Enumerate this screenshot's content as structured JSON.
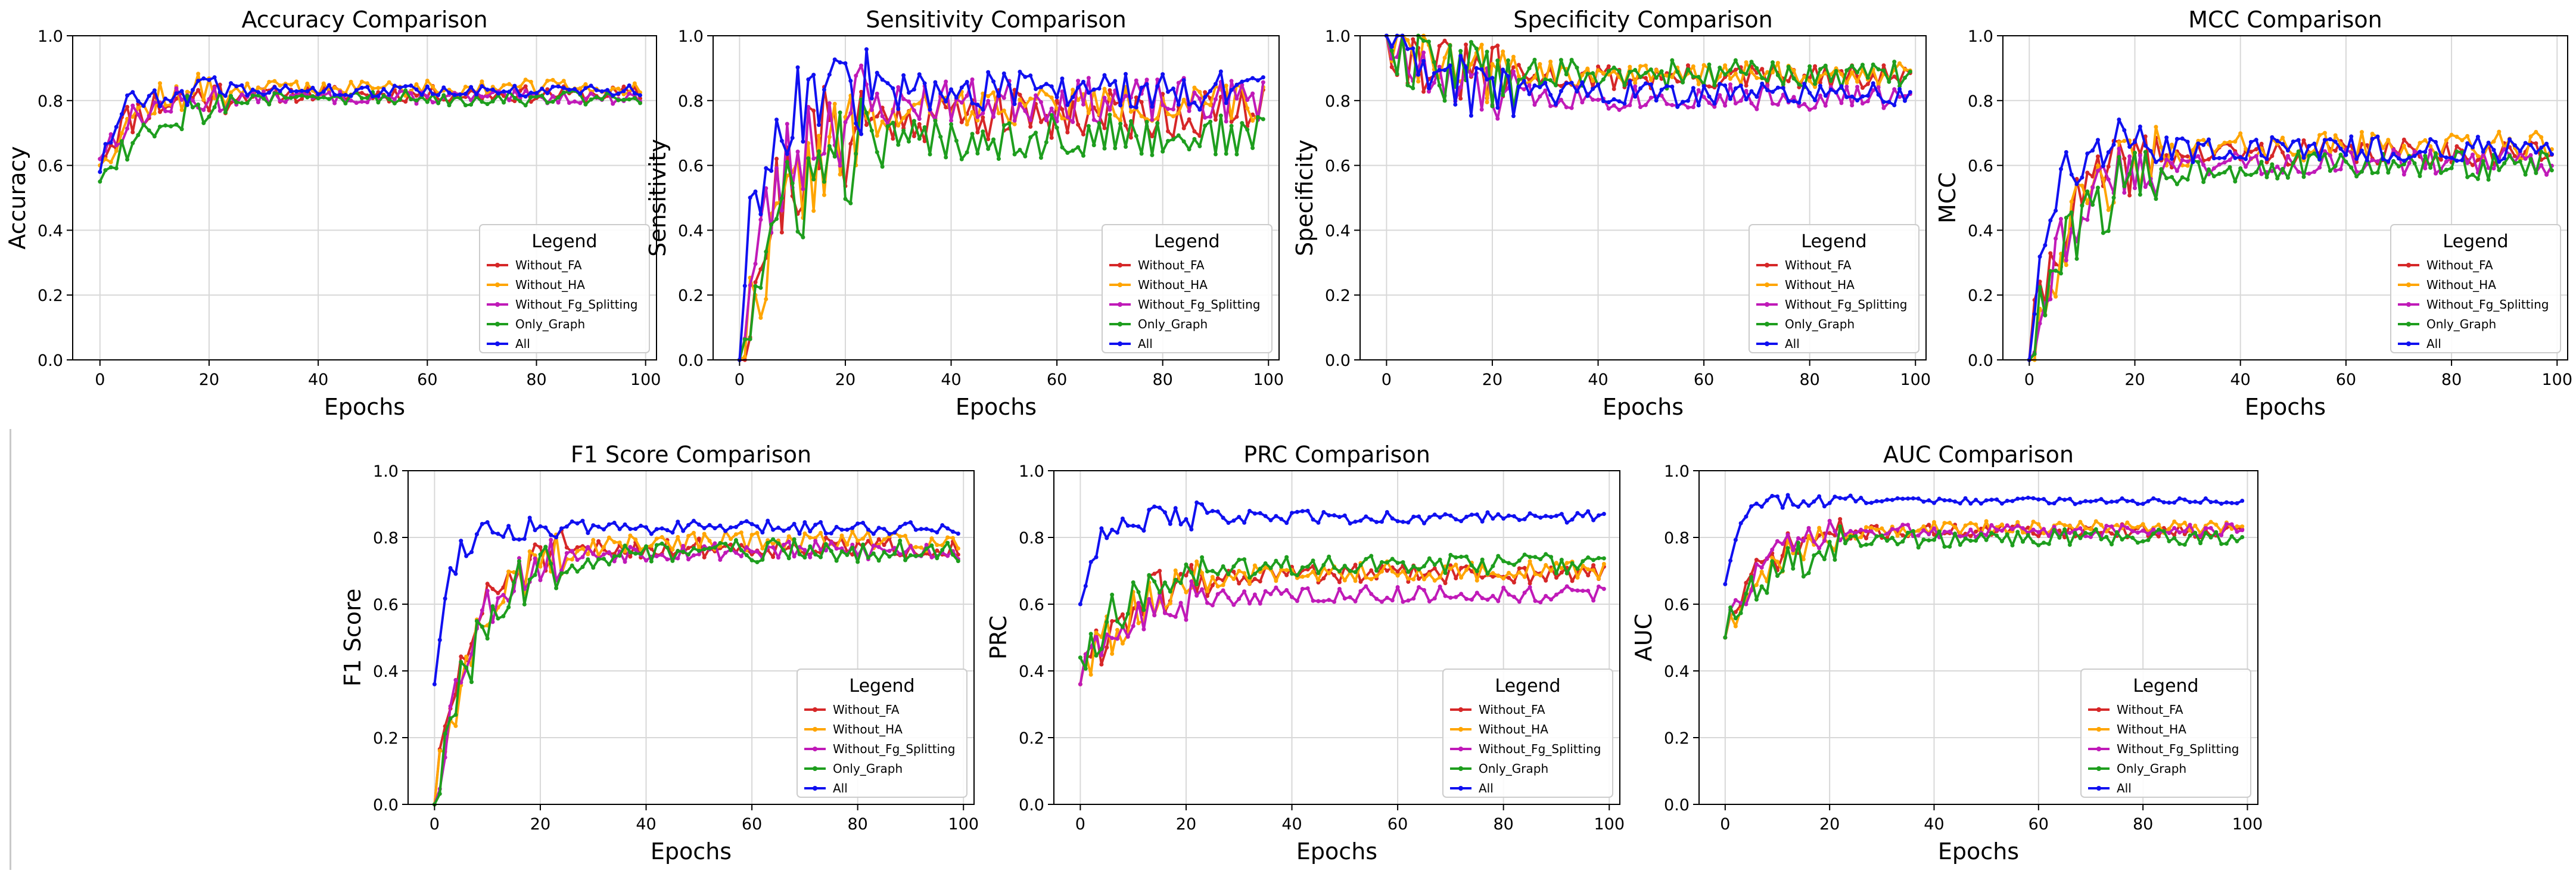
{
  "chart_data": [
    {
      "type": "line",
      "id": "accuracy",
      "title": "Accuracy Comparison",
      "xlabel": "Epochs",
      "ylabel": "Accuracy",
      "xlim": [
        -5,
        102
      ],
      "ylim": [
        0,
        1.0
      ],
      "xticks": [
        0,
        20,
        40,
        60,
        80,
        100
      ],
      "yticks": [
        0.0,
        0.2,
        0.4,
        0.6,
        0.8,
        1.0
      ],
      "xtick_labels": [
        "0",
        "20",
        "40",
        "60",
        "80",
        "100"
      ],
      "ytick_labels": [
        "0.0",
        "0.2",
        "0.4",
        "0.6",
        "0.8",
        "1.0"
      ],
      "legend_title": "Legend",
      "legend_loc": "lower right",
      "series": [
        {
          "name": "Without_FA",
          "color": "#d62728",
          "start": 0.62,
          "plateau": 0.82,
          "rate": 0.18,
          "noise": 0.025,
          "seed": 11
        },
        {
          "name": "Without_HA",
          "color": "#ffa500",
          "start": 0.6,
          "plateau": 0.84,
          "rate": 0.16,
          "noise": 0.025,
          "seed": 12
        },
        {
          "name": "Without_Fg_Splitting",
          "color": "#c01ab8",
          "start": 0.62,
          "plateau": 0.81,
          "rate": 0.17,
          "noise": 0.02,
          "seed": 13
        },
        {
          "name": "Only_Graph",
          "color": "#1e9e1e",
          "start": 0.55,
          "plateau": 0.81,
          "rate": 0.12,
          "noise": 0.025,
          "seed": 14
        },
        {
          "name": "All",
          "color": "#1010f0",
          "start": 0.58,
          "plateau": 0.83,
          "rate": 0.35,
          "noise": 0.018,
          "seed": 15
        }
      ]
    },
    {
      "type": "line",
      "id": "sensitivity",
      "title": "Sensitivity Comparison",
      "xlabel": "Epochs",
      "ylabel": "Sensitivity",
      "xlim": [
        -5,
        102
      ],
      "ylim": [
        0,
        1.0
      ],
      "xticks": [
        0,
        20,
        40,
        60,
        80,
        100
      ],
      "yticks": [
        0.0,
        0.2,
        0.4,
        0.6,
        0.8,
        1.0
      ],
      "xtick_labels": [
        "0",
        "20",
        "40",
        "60",
        "80",
        "100"
      ],
      "ytick_labels": [
        "0.0",
        "0.2",
        "0.4",
        "0.6",
        "0.8",
        "1.0"
      ],
      "legend_title": "Legend",
      "legend_loc": "lower right",
      "series": [
        {
          "name": "Without_FA",
          "color": "#d62728",
          "start": 0.0,
          "plateau": 0.76,
          "rate": 0.14,
          "noise": 0.08,
          "seed": 21
        },
        {
          "name": "Without_HA",
          "color": "#ffa500",
          "start": 0.0,
          "plateau": 0.79,
          "rate": 0.1,
          "noise": 0.06,
          "seed": 22
        },
        {
          "name": "Without_Fg_Splitting",
          "color": "#c01ab8",
          "start": 0.0,
          "plateau": 0.8,
          "rate": 0.15,
          "noise": 0.07,
          "seed": 23
        },
        {
          "name": "Only_Graph",
          "color": "#1e9e1e",
          "start": 0.0,
          "plateau": 0.69,
          "rate": 0.12,
          "noise": 0.07,
          "seed": 24
        },
        {
          "name": "All",
          "color": "#1010f0",
          "start": 0.0,
          "plateau": 0.83,
          "rate": 0.3,
          "noise": 0.06,
          "seed": 25
        }
      ]
    },
    {
      "type": "line",
      "id": "specificity",
      "title": "Specificity Comparison",
      "xlabel": "Epochs",
      "ylabel": "Specificity",
      "xlim": [
        -5,
        102
      ],
      "ylim": [
        0,
        1.0
      ],
      "xticks": [
        0,
        20,
        40,
        60,
        80,
        100
      ],
      "yticks": [
        0.0,
        0.2,
        0.4,
        0.6,
        0.8,
        1.0
      ],
      "xtick_labels": [
        "0",
        "20",
        "40",
        "60",
        "80",
        "100"
      ],
      "ytick_labels": [
        "0.0",
        "0.2",
        "0.4",
        "0.6",
        "0.8",
        "1.0"
      ],
      "legend_title": "Legend",
      "legend_loc": "lower right",
      "series": [
        {
          "name": "Without_FA",
          "color": "#d62728",
          "start": 1.0,
          "plateau": 0.87,
          "rate": 0.15,
          "noise": 0.04,
          "seed": 31
        },
        {
          "name": "Without_HA",
          "color": "#ffa500",
          "start": 1.0,
          "plateau": 0.88,
          "rate": 0.15,
          "noise": 0.04,
          "seed": 32
        },
        {
          "name": "Without_Fg_Splitting",
          "color": "#c01ab8",
          "start": 1.0,
          "plateau": 0.81,
          "rate": 0.15,
          "noise": 0.04,
          "seed": 33
        },
        {
          "name": "Only_Graph",
          "color": "#1e9e1e",
          "start": 1.0,
          "plateau": 0.88,
          "rate": 0.15,
          "noise": 0.045,
          "seed": 34
        },
        {
          "name": "All",
          "color": "#1010f0",
          "start": 1.0,
          "plateau": 0.82,
          "rate": 0.15,
          "noise": 0.04,
          "seed": 35
        }
      ]
    },
    {
      "type": "line",
      "id": "mcc",
      "title": "MCC Comparison",
      "xlabel": "Epochs",
      "ylabel": "MCC",
      "xlim": [
        -5,
        102
      ],
      "ylim": [
        0,
        1.0
      ],
      "xticks": [
        0,
        20,
        40,
        60,
        80,
        100
      ],
      "yticks": [
        0.0,
        0.2,
        0.4,
        0.6,
        0.8,
        1.0
      ],
      "xtick_labels": [
        "0",
        "20",
        "40",
        "60",
        "80",
        "100"
      ],
      "ytick_labels": [
        "0.0",
        "0.2",
        "0.4",
        "0.6",
        "0.8",
        "1.0"
      ],
      "legend_title": "Legend",
      "legend_loc": "lower right",
      "series": [
        {
          "name": "Without_FA",
          "color": "#d62728",
          "start": 0.0,
          "plateau": 0.64,
          "rate": 0.15,
          "noise": 0.04,
          "seed": 41
        },
        {
          "name": "Without_HA",
          "color": "#ffa500",
          "start": 0.0,
          "plateau": 0.66,
          "rate": 0.12,
          "noise": 0.045,
          "seed": 42
        },
        {
          "name": "Without_Fg_Splitting",
          "color": "#c01ab8",
          "start": 0.0,
          "plateau": 0.61,
          "rate": 0.15,
          "noise": 0.04,
          "seed": 43
        },
        {
          "name": "Only_Graph",
          "color": "#1e9e1e",
          "start": 0.0,
          "plateau": 0.6,
          "rate": 0.12,
          "noise": 0.045,
          "seed": 44
        },
        {
          "name": "All",
          "color": "#1010f0",
          "start": 0.0,
          "plateau": 0.65,
          "rate": 0.3,
          "noise": 0.04,
          "seed": 45
        }
      ]
    },
    {
      "type": "line",
      "id": "f1",
      "title": "F1 Score Comparison",
      "xlabel": "Epochs",
      "ylabel": "F1 Score",
      "xlim": [
        -5,
        102
      ],
      "ylim": [
        0,
        1.0
      ],
      "xticks": [
        0,
        20,
        40,
        60,
        80,
        100
      ],
      "yticks": [
        0.0,
        0.2,
        0.4,
        0.6,
        0.8,
        1.0
      ],
      "xtick_labels": [
        "0",
        "20",
        "40",
        "60",
        "80",
        "100"
      ],
      "ytick_labels": [
        "0.0",
        "0.2",
        "0.4",
        "0.6",
        "0.8",
        "1.0"
      ],
      "legend_title": "Legend",
      "legend_loc": "lower right",
      "series": [
        {
          "name": "Without_FA",
          "color": "#d62728",
          "start": 0.0,
          "plateau": 0.77,
          "rate": 0.15,
          "noise": 0.03,
          "seed": 51
        },
        {
          "name": "Without_HA",
          "color": "#ffa500",
          "start": 0.0,
          "plateau": 0.79,
          "rate": 0.12,
          "noise": 0.03,
          "seed": 52
        },
        {
          "name": "Without_Fg_Splitting",
          "color": "#c01ab8",
          "start": 0.0,
          "plateau": 0.76,
          "rate": 0.15,
          "noise": 0.03,
          "seed": 53
        },
        {
          "name": "Only_Graph",
          "color": "#1e9e1e",
          "start": 0.0,
          "plateau": 0.76,
          "rate": 0.12,
          "noise": 0.035,
          "seed": 54
        },
        {
          "name": "All",
          "color": "#1010f0",
          "start": 0.36,
          "plateau": 0.83,
          "rate": 0.4,
          "noise": 0.02,
          "seed": 55
        }
      ]
    },
    {
      "type": "line",
      "id": "prc",
      "title": "PRC Comparison",
      "xlabel": "Epochs",
      "ylabel": "PRC",
      "xlim": [
        -5,
        102
      ],
      "ylim": [
        0,
        1.0
      ],
      "xticks": [
        0,
        20,
        40,
        60,
        80,
        100
      ],
      "yticks": [
        0.0,
        0.2,
        0.4,
        0.6,
        0.8,
        1.0
      ],
      "xtick_labels": [
        "0",
        "20",
        "40",
        "60",
        "80",
        "100"
      ],
      "ytick_labels": [
        "0.0",
        "0.2",
        "0.4",
        "0.6",
        "0.8",
        "1.0"
      ],
      "legend_title": "Legend",
      "legend_loc": "lower right",
      "series": [
        {
          "name": "Without_FA",
          "color": "#d62728",
          "start": 0.36,
          "plateau": 0.69,
          "rate": 0.12,
          "noise": 0.03,
          "seed": 61
        },
        {
          "name": "Without_HA",
          "color": "#ffa500",
          "start": 0.36,
          "plateau": 0.7,
          "rate": 0.1,
          "noise": 0.03,
          "seed": 62
        },
        {
          "name": "Without_Fg_Splitting",
          "color": "#c01ab8",
          "start": 0.36,
          "plateau": 0.63,
          "rate": 0.12,
          "noise": 0.025,
          "seed": 63
        },
        {
          "name": "Only_Graph",
          "color": "#1e9e1e",
          "start": 0.44,
          "plateau": 0.72,
          "rate": 0.1,
          "noise": 0.03,
          "seed": 64
        },
        {
          "name": "All",
          "color": "#1010f0",
          "start": 0.6,
          "plateau": 0.86,
          "rate": 0.4,
          "noise": 0.02,
          "seed": 65
        }
      ]
    },
    {
      "type": "line",
      "id": "auc",
      "title": "AUC Comparison",
      "xlabel": "Epochs",
      "ylabel": "AUC",
      "xlim": [
        -5,
        102
      ],
      "ylim": [
        0,
        1.0
      ],
      "xticks": [
        0,
        20,
        40,
        60,
        80,
        100
      ],
      "yticks": [
        0.0,
        0.2,
        0.4,
        0.6,
        0.8,
        1.0
      ],
      "xtick_labels": [
        "0",
        "20",
        "40",
        "60",
        "80",
        "100"
      ],
      "ytick_labels": [
        "0.0",
        "0.2",
        "0.4",
        "0.6",
        "0.8",
        "1.0"
      ],
      "legend_title": "Legend",
      "legend_loc": "lower right",
      "series": [
        {
          "name": "Without_FA",
          "color": "#d62728",
          "start": 0.5,
          "plateau": 0.82,
          "rate": 0.15,
          "noise": 0.02,
          "seed": 71
        },
        {
          "name": "Without_HA",
          "color": "#ffa500",
          "start": 0.5,
          "plateau": 0.83,
          "rate": 0.12,
          "noise": 0.02,
          "seed": 72
        },
        {
          "name": "Without_Fg_Splitting",
          "color": "#c01ab8",
          "start": 0.5,
          "plateau": 0.82,
          "rate": 0.15,
          "noise": 0.02,
          "seed": 73
        },
        {
          "name": "Only_Graph",
          "color": "#1e9e1e",
          "start": 0.5,
          "plateau": 0.8,
          "rate": 0.11,
          "noise": 0.025,
          "seed": 74
        },
        {
          "name": "All",
          "color": "#1010f0",
          "start": 0.66,
          "plateau": 0.91,
          "rate": 0.45,
          "noise": 0.01,
          "seed": 75
        }
      ]
    }
  ],
  "epochs": {
    "first": 0,
    "last": 99
  }
}
